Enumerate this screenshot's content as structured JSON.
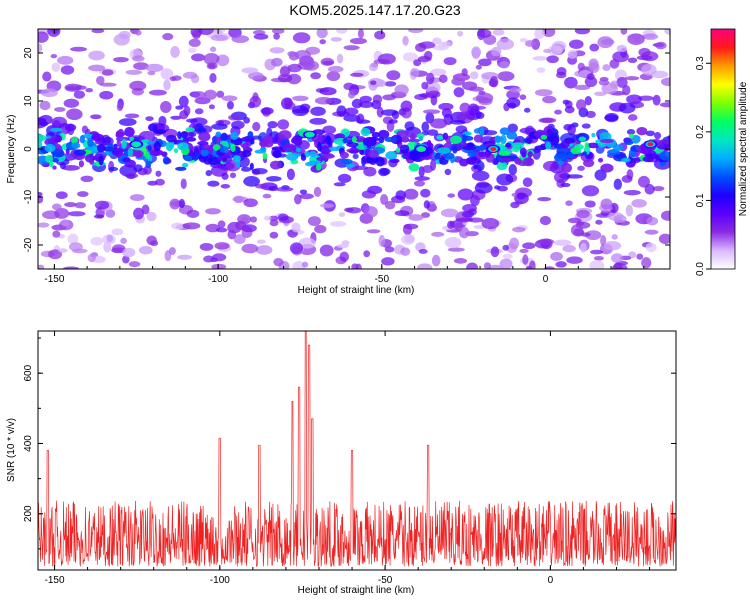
{
  "title": "KOM5.2025.147.17.20.G23",
  "chart_data": [
    {
      "type": "heatmap",
      "title": "KOM5.2025.147.17.20.G23",
      "xlabel": "Height of straight line (km)",
      "ylabel": "Frequency (Hz)",
      "xlim": [
        -155,
        38
      ],
      "ylim": [
        -25,
        25
      ],
      "x_ticks": [
        -150,
        -100,
        -50,
        0
      ],
      "y_ticks": [
        -20,
        -10,
        0,
        10,
        20
      ],
      "colorbar": {
        "label": "Normalized spectral amplitude",
        "range": [
          0.0,
          0.35
        ],
        "ticks": [
          0.0,
          0.1,
          0.2,
          0.3
        ],
        "colormap": [
          "#ffffff",
          "#d9b8ff",
          "#8a2be2",
          "#5a00ff",
          "#1e00ff",
          "#0050ff",
          "#00b0ff",
          "#00e8c0",
          "#00ff60",
          "#7fff00",
          "#ffff00",
          "#ff9900",
          "#ff1a1a",
          "#ff0080"
        ]
      },
      "signal_band_center_hz": 0,
      "signal_band_halfwidth_hz": 4,
      "notable_peaks": [
        {
          "x": -16,
          "y": 0,
          "value": 0.33
        },
        {
          "x": 32,
          "y": 1,
          "value": 0.34
        },
        {
          "x": -125,
          "y": 1,
          "value": 0.2
        },
        {
          "x": -72,
          "y": 3,
          "value": 0.2
        },
        {
          "x": -38,
          "y": 0,
          "value": 0.22
        }
      ]
    },
    {
      "type": "line",
      "xlabel": "Height of straight line (km)",
      "ylabel": "SNR (10 * v/v)",
      "xlim": [
        -155,
        38
      ],
      "ylim": [
        40,
        720
      ],
      "x_ticks": [
        -150,
        -100,
        -50,
        0
      ],
      "y_ticks": [
        200,
        400,
        600
      ],
      "color": "#ee2222",
      "baseline_mean": 120,
      "noise_range": [
        50,
        300
      ],
      "peaks": [
        {
          "x": -78,
          "y": 520
        },
        {
          "x": -76,
          "y": 560
        },
        {
          "x": -74,
          "y": 720
        },
        {
          "x": -73,
          "y": 680
        },
        {
          "x": -72,
          "y": 470
        },
        {
          "x": -100,
          "y": 415
        },
        {
          "x": -152,
          "y": 380
        },
        {
          "x": -88,
          "y": 395
        },
        {
          "x": -60,
          "y": 380
        },
        {
          "x": -37,
          "y": 395
        }
      ]
    }
  ]
}
